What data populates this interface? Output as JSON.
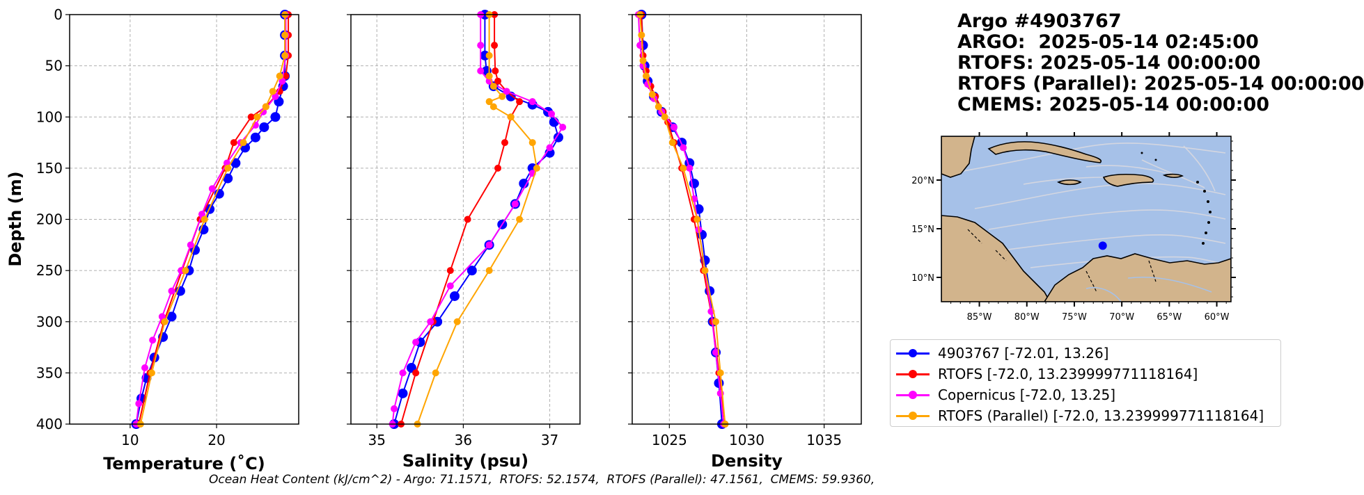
{
  "title_lines": [
    "Argo #4903767",
    "ARGO:  2025-05-14 02:45:00",
    "RTOFS: 2025-05-14 00:00:00",
    "RTOFS (Parallel): 2025-05-14 00:00:00",
    "CMEMS: 2025-05-14 00:00:00"
  ],
  "footer": "Ocean Heat Content (kJ/cm^2) - Argo: 71.1571,  RTOFS: 52.1574,  RTOFS (Parallel): 47.1561,  CMEMS: 59.9360,",
  "colors": {
    "argo": "#0000ff",
    "rtofs": "#ff0000",
    "copernicus": "#ff00ff",
    "parallel": "#ffa500",
    "ocean": "#a6c1e8",
    "land": "#d2b48c"
  },
  "legend": [
    {
      "label": "4903767 [-72.01, 13.26]",
      "color": "#0000ff"
    },
    {
      "label": "RTOFS [-72.0, 13.239999771118164]",
      "color": "#ff0000"
    },
    {
      "label": "Copernicus [-72.0, 13.25]",
      "color": "#ff00ff"
    },
    {
      "label": "RTOFS (Parallel) [-72.0, 13.239999771118164]",
      "color": "#ffa500"
    }
  ],
  "map": {
    "lat_ticks": [
      "20°N",
      "15°N",
      "10°N"
    ],
    "lon_ticks": [
      "85°W",
      "80°W",
      "75°W",
      "70°W",
      "65°W",
      "60°W"
    ],
    "float_marker": {
      "lon": -72.01,
      "lat": 13.26
    }
  },
  "chart_data": [
    {
      "type": "line",
      "xlabel": "Temperature (˚C)",
      "ylabel": "Depth (m)",
      "xlim": [
        3,
        29.5
      ],
      "ylim": [
        400,
        0
      ],
      "xticks": [
        10,
        20
      ],
      "yticks": [
        0,
        50,
        100,
        150,
        200,
        250,
        300,
        350,
        400
      ],
      "grid": true,
      "series": [
        {
          "key": "argo",
          "color": "#0000ff",
          "marker_size": 7,
          "points": [
            [
              27.9,
              0
            ],
            [
              27.9,
              20
            ],
            [
              27.9,
              40
            ],
            [
              27.9,
              60
            ],
            [
              27.7,
              70
            ],
            [
              27.2,
              85
            ],
            [
              26.8,
              100
            ],
            [
              25.5,
              110
            ],
            [
              24.5,
              120
            ],
            [
              23.3,
              130
            ],
            [
              22.2,
              145
            ],
            [
              21.3,
              160
            ],
            [
              20.3,
              175
            ],
            [
              19.2,
              190
            ],
            [
              18.5,
              210
            ],
            [
              17.5,
              230
            ],
            [
              16.8,
              250
            ],
            [
              15.8,
              270
            ],
            [
              14.8,
              295
            ],
            [
              13.8,
              315
            ],
            [
              12.8,
              335
            ],
            [
              11.9,
              355
            ],
            [
              11.3,
              375
            ],
            [
              10.7,
              400
            ]
          ]
        },
        {
          "key": "rtofs",
          "color": "#ff0000",
          "marker_size": 5,
          "points": [
            [
              28.3,
              0
            ],
            [
              28.3,
              20
            ],
            [
              28.3,
              40
            ],
            [
              28.0,
              60
            ],
            [
              27.3,
              75
            ],
            [
              25.7,
              90
            ],
            [
              24.0,
              100
            ],
            [
              22.0,
              125
            ],
            [
              21.0,
              150
            ],
            [
              18.1,
              200
            ],
            [
              16.0,
              250
            ],
            [
              13.9,
              300
            ],
            [
              12.3,
              350
            ],
            [
              11.0,
              400
            ]
          ]
        },
        {
          "key": "copernicus",
          "color": "#ff00ff",
          "marker_size": 5,
          "points": [
            [
              28.0,
              0
            ],
            [
              28.0,
              20
            ],
            [
              28.0,
              40
            ],
            [
              27.6,
              65
            ],
            [
              26.8,
              80
            ],
            [
              25.4,
              95
            ],
            [
              24.5,
              108
            ],
            [
              22.8,
              125
            ],
            [
              21.2,
              145
            ],
            [
              19.5,
              170
            ],
            [
              18.3,
              195
            ],
            [
              17.0,
              225
            ],
            [
              15.9,
              250
            ],
            [
              14.8,
              270
            ],
            [
              13.7,
              295
            ],
            [
              12.6,
              318
            ],
            [
              11.7,
              345
            ],
            [
              11.0,
              380
            ],
            [
              10.7,
              400
            ]
          ]
        },
        {
          "key": "parallel",
          "color": "#ffa500",
          "marker_size": 5,
          "points": [
            [
              27.9,
              0
            ],
            [
              27.9,
              20
            ],
            [
              27.9,
              40
            ],
            [
              27.3,
              60
            ],
            [
              26.5,
              75
            ],
            [
              25.7,
              90
            ],
            [
              24.7,
              100
            ],
            [
              23.1,
              125
            ],
            [
              21.3,
              150
            ],
            [
              18.6,
              200
            ],
            [
              16.4,
              250
            ],
            [
              14.0,
              300
            ],
            [
              12.5,
              350
            ],
            [
              11.2,
              400
            ]
          ]
        }
      ]
    },
    {
      "type": "line",
      "xlabel": "Salinity (psu)",
      "ylabel": "",
      "xlim": [
        34.7,
        37.35
      ],
      "ylim": [
        400,
        0
      ],
      "xticks": [
        35,
        36,
        37
      ],
      "yticks": [
        0,
        50,
        100,
        150,
        200,
        250,
        300,
        350,
        400
      ],
      "grid": true,
      "series": [
        {
          "key": "argo",
          "color": "#0000ff",
          "marker_size": 7,
          "points": [
            [
              36.25,
              0
            ],
            [
              36.25,
              40
            ],
            [
              36.27,
              55
            ],
            [
              36.35,
              70
            ],
            [
              36.55,
              80
            ],
            [
              36.8,
              88
            ],
            [
              36.98,
              95
            ],
            [
              37.05,
              105
            ],
            [
              37.1,
              120
            ],
            [
              37.0,
              135
            ],
            [
              36.8,
              150
            ],
            [
              36.7,
              165
            ],
            [
              36.6,
              185
            ],
            [
              36.45,
              205
            ],
            [
              36.3,
              225
            ],
            [
              36.1,
              250
            ],
            [
              35.9,
              275
            ],
            [
              35.7,
              300
            ],
            [
              35.5,
              320
            ],
            [
              35.4,
              345
            ],
            [
              35.3,
              370
            ],
            [
              35.2,
              400
            ]
          ]
        },
        {
          "key": "rtofs",
          "color": "#ff0000",
          "marker_size": 5,
          "points": [
            [
              36.36,
              0
            ],
            [
              36.36,
              30
            ],
            [
              36.37,
              55
            ],
            [
              36.4,
              65
            ],
            [
              36.5,
              75
            ],
            [
              36.65,
              85
            ],
            [
              36.55,
              100
            ],
            [
              36.48,
              125
            ],
            [
              36.4,
              150
            ],
            [
              36.05,
              200
            ],
            [
              35.85,
              250
            ],
            [
              35.65,
              300
            ],
            [
              35.45,
              350
            ],
            [
              35.28,
              400
            ]
          ]
        },
        {
          "key": "copernicus",
          "color": "#ff00ff",
          "marker_size": 5,
          "points": [
            [
              36.2,
              0
            ],
            [
              36.2,
              30
            ],
            [
              36.2,
              55
            ],
            [
              36.3,
              65
            ],
            [
              36.5,
              75
            ],
            [
              36.8,
              85
            ],
            [
              37.02,
              97
            ],
            [
              37.15,
              110
            ],
            [
              37.0,
              130
            ],
            [
              36.8,
              155
            ],
            [
              36.6,
              185
            ],
            [
              36.3,
              225
            ],
            [
              35.85,
              265
            ],
            [
              35.62,
              300
            ],
            [
              35.45,
              320
            ],
            [
              35.3,
              350
            ],
            [
              35.2,
              385
            ],
            [
              35.18,
              400
            ]
          ]
        },
        {
          "key": "parallel",
          "color": "#ffa500",
          "marker_size": 5,
          "points": [
            [
              36.3,
              0
            ],
            [
              36.3,
              40
            ],
            [
              36.3,
              60
            ],
            [
              36.35,
              70
            ],
            [
              36.45,
              80
            ],
            [
              36.3,
              85
            ],
            [
              36.35,
              90
            ],
            [
              36.55,
              100
            ],
            [
              36.8,
              125
            ],
            [
              36.85,
              150
            ],
            [
              36.65,
              200
            ],
            [
              36.3,
              250
            ],
            [
              35.93,
              300
            ],
            [
              35.68,
              350
            ],
            [
              35.47,
              400
            ]
          ]
        }
      ]
    },
    {
      "type": "line",
      "xlabel": "Density",
      "ylabel": "",
      "xlim": [
        1022.6,
        1037.4
      ],
      "ylim": [
        400,
        0
      ],
      "xticks": [
        1025,
        1030,
        1035
      ],
      "yticks": [
        0,
        50,
        100,
        150,
        200,
        250,
        300,
        350,
        400
      ],
      "grid": true,
      "series": [
        {
          "key": "argo",
          "color": "#0000ff",
          "marker_size": 7,
          "points": [
            [
              1023.2,
              0
            ],
            [
              1023.3,
              30
            ],
            [
              1023.4,
              50
            ],
            [
              1023.6,
              65
            ],
            [
              1024.0,
              80
            ],
            [
              1024.5,
              95
            ],
            [
              1025.2,
              110
            ],
            [
              1025.8,
              125
            ],
            [
              1026.3,
              145
            ],
            [
              1026.6,
              165
            ],
            [
              1026.9,
              190
            ],
            [
              1027.1,
              215
            ],
            [
              1027.3,
              240
            ],
            [
              1027.6,
              270
            ],
            [
              1027.8,
              300
            ],
            [
              1028.0,
              330
            ],
            [
              1028.2,
              360
            ],
            [
              1028.4,
              400
            ]
          ]
        },
        {
          "key": "rtofs",
          "color": "#ff0000",
          "marker_size": 5,
          "points": [
            [
              1023.2,
              0
            ],
            [
              1023.3,
              40
            ],
            [
              1023.5,
              55
            ],
            [
              1023.8,
              70
            ],
            [
              1024.1,
              80
            ],
            [
              1024.6,
              95
            ],
            [
              1024.9,
              105
            ],
            [
              1025.3,
              125
            ],
            [
              1025.8,
              150
            ],
            [
              1026.6,
              200
            ],
            [
              1027.2,
              250
            ],
            [
              1027.8,
              300
            ],
            [
              1028.2,
              350
            ],
            [
              1028.6,
              400
            ]
          ]
        },
        {
          "key": "copernicus",
          "color": "#ff00ff",
          "marker_size": 5,
          "points": [
            [
              1023.0,
              0
            ],
            [
              1023.1,
              30
            ],
            [
              1023.3,
              50
            ],
            [
              1023.6,
              68
            ],
            [
              1024.0,
              82
            ],
            [
              1024.5,
              95
            ],
            [
              1025.3,
              110
            ],
            [
              1025.9,
              130
            ],
            [
              1026.3,
              150
            ],
            [
              1026.6,
              180
            ],
            [
              1026.9,
              210
            ],
            [
              1027.3,
              250
            ],
            [
              1027.7,
              290
            ],
            [
              1028.0,
              330
            ],
            [
              1028.3,
              370
            ],
            [
              1028.5,
              400
            ]
          ]
        },
        {
          "key": "parallel",
          "color": "#ffa500",
          "marker_size": 5,
          "points": [
            [
              1023.1,
              0
            ],
            [
              1023.2,
              20
            ],
            [
              1023.3,
              45
            ],
            [
              1023.5,
              60
            ],
            [
              1023.9,
              78
            ],
            [
              1024.3,
              90
            ],
            [
              1024.7,
              100
            ],
            [
              1025.2,
              125
            ],
            [
              1025.9,
              150
            ],
            [
              1026.8,
              200
            ],
            [
              1027.3,
              250
            ],
            [
              1028.0,
              300
            ],
            [
              1028.3,
              350
            ],
            [
              1028.6,
              400
            ]
          ]
        }
      ]
    }
  ]
}
